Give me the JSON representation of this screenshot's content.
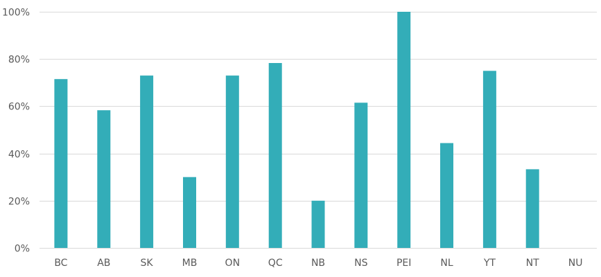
{
  "chart_data": {
    "type": "bar",
    "title": "",
    "xlabel": "",
    "ylabel": "",
    "categories": [
      "BC",
      "AB",
      "SK",
      "MB",
      "ON",
      "QC",
      "NB",
      "NS",
      "PEI",
      "NL",
      "YT",
      "NT",
      "NU"
    ],
    "values": [
      71.5,
      58.3,
      73.0,
      30.0,
      73.0,
      78.3,
      20.0,
      61.5,
      100.0,
      44.4,
      75.0,
      33.3,
      0.0
    ],
    "ylim": [
      0,
      100
    ],
    "yticks": [
      0,
      20,
      40,
      60,
      80,
      100
    ],
    "ytick_labels": [
      "0%",
      "20%",
      "40%",
      "60%",
      "80%",
      "100%"
    ],
    "grid": true,
    "legend": "none",
    "bar_color": "#33adb8",
    "grid_color": "#d9d9d9",
    "label_color": "#595959"
  }
}
